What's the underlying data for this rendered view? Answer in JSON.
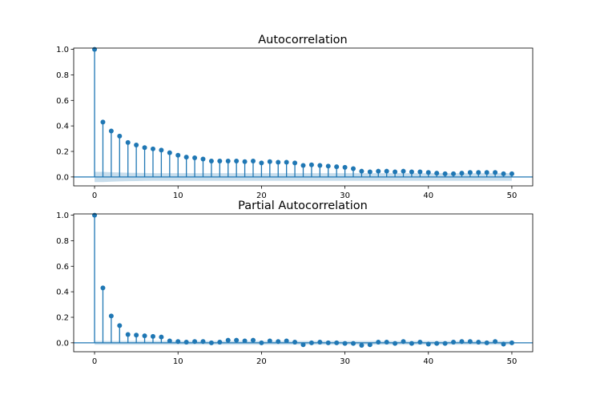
{
  "chart_data": [
    {
      "type": "stem",
      "title": "Autocorrelation",
      "xlabel": "",
      "ylabel": "",
      "xlim": [
        -2.5,
        52.5
      ],
      "ylim": [
        -0.07,
        1.01
      ],
      "x_ticks": [
        0,
        10,
        20,
        30,
        40,
        50
      ],
      "y_ticks": [
        0.0,
        0.2,
        0.4,
        0.6,
        0.8,
        1.0
      ],
      "x_tick_labels": [
        "0",
        "10",
        "20",
        "30",
        "40",
        "50"
      ],
      "y_tick_labels": [
        "0.0",
        "0.2",
        "0.4",
        "0.6",
        "0.8",
        "1.0"
      ],
      "grid": false,
      "lags": [
        0,
        1,
        2,
        3,
        4,
        5,
        6,
        7,
        8,
        9,
        10,
        11,
        12,
        13,
        14,
        15,
        16,
        17,
        18,
        19,
        20,
        21,
        22,
        23,
        24,
        25,
        26,
        27,
        28,
        29,
        30,
        31,
        32,
        33,
        34,
        35,
        36,
        37,
        38,
        39,
        40,
        41,
        42,
        43,
        44,
        45,
        46,
        47,
        48,
        49,
        50
      ],
      "values": [
        1.0,
        0.43,
        0.36,
        0.32,
        0.27,
        0.25,
        0.23,
        0.22,
        0.21,
        0.19,
        0.17,
        0.155,
        0.15,
        0.14,
        0.125,
        0.125,
        0.125,
        0.125,
        0.12,
        0.125,
        0.11,
        0.12,
        0.115,
        0.115,
        0.11,
        0.09,
        0.095,
        0.09,
        0.085,
        0.08,
        0.075,
        0.065,
        0.045,
        0.04,
        0.045,
        0.045,
        0.04,
        0.045,
        0.04,
        0.04,
        0.035,
        0.03,
        0.025,
        0.025,
        0.03,
        0.035,
        0.035,
        0.035,
        0.035,
        0.025,
        0.025
      ],
      "confidence_band": [
        0.04,
        0.04,
        0.037,
        0.035,
        0.033,
        0.032,
        0.031,
        0.03,
        0.03,
        0.03,
        0.03,
        0.03,
        0.03,
        0.03,
        0.03,
        0.03,
        0.03,
        0.03,
        0.03,
        0.03,
        0.03,
        0.03,
        0.03,
        0.03,
        0.03,
        0.03,
        0.03,
        0.03,
        0.03,
        0.03,
        0.03,
        0.03,
        0.03,
        0.03,
        0.03,
        0.03,
        0.03,
        0.03,
        0.03,
        0.03,
        0.03,
        0.03,
        0.03,
        0.03,
        0.03,
        0.03,
        0.03,
        0.03,
        0.03,
        0.03,
        0.03
      ],
      "color": "#1f77b4"
    },
    {
      "type": "stem",
      "title": "Partial Autocorrelation",
      "xlabel": "",
      "ylabel": "",
      "xlim": [
        -2.5,
        52.5
      ],
      "ylim": [
        -0.07,
        1.01
      ],
      "x_ticks": [
        0,
        10,
        20,
        30,
        40,
        50
      ],
      "y_ticks": [
        0.0,
        0.2,
        0.4,
        0.6,
        0.8,
        1.0
      ],
      "x_tick_labels": [
        "0",
        "10",
        "20",
        "30",
        "40",
        "50"
      ],
      "y_tick_labels": [
        "0.0",
        "0.2",
        "0.4",
        "0.6",
        "0.8",
        "1.0"
      ],
      "grid": false,
      "lags": [
        0,
        1,
        2,
        3,
        4,
        5,
        6,
        7,
        8,
        9,
        10,
        11,
        12,
        13,
        14,
        15,
        16,
        17,
        18,
        19,
        20,
        21,
        22,
        23,
        24,
        25,
        26,
        27,
        28,
        29,
        30,
        31,
        32,
        33,
        34,
        35,
        36,
        37,
        38,
        39,
        40,
        41,
        42,
        43,
        44,
        45,
        46,
        47,
        48,
        49,
        50
      ],
      "values": [
        1.0,
        0.43,
        0.21,
        0.135,
        0.065,
        0.06,
        0.055,
        0.05,
        0.045,
        0.015,
        0.01,
        0.005,
        0.01,
        0.01,
        0.0,
        0.005,
        0.02,
        0.02,
        0.015,
        0.02,
        0.0,
        0.015,
        0.01,
        0.015,
        0.005,
        -0.015,
        0.0,
        0.005,
        0.0,
        0.0,
        -0.005,
        -0.005,
        -0.02,
        -0.015,
        0.005,
        0.005,
        -0.005,
        0.01,
        -0.005,
        0.005,
        -0.01,
        -0.005,
        -0.005,
        0.005,
        0.01,
        0.01,
        0.005,
        0.0,
        0.01,
        -0.01,
        0.0
      ],
      "confidence_band": [
        0.015,
        0.015,
        0.015,
        0.015,
        0.015,
        0.015,
        0.015,
        0.015,
        0.015,
        0.015,
        0.015,
        0.015,
        0.015,
        0.015,
        0.015,
        0.015,
        0.015,
        0.015,
        0.015,
        0.015,
        0.015,
        0.015,
        0.015,
        0.015,
        0.015,
        0.015,
        0.015,
        0.015,
        0.015,
        0.015,
        0.015,
        0.015,
        0.015,
        0.015,
        0.015,
        0.015,
        0.015,
        0.015,
        0.015,
        0.015,
        0.015,
        0.015,
        0.015,
        0.015,
        0.015,
        0.015,
        0.015,
        0.015,
        0.015,
        0.015,
        0.015
      ],
      "color": "#1f77b4"
    }
  ]
}
